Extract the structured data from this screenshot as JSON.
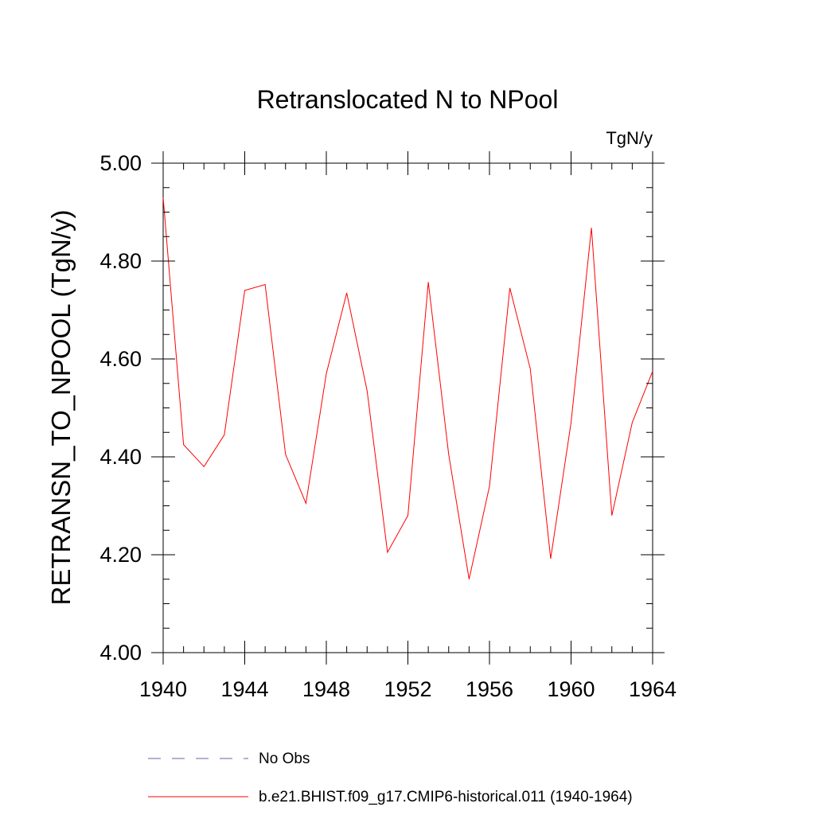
{
  "chart_data": {
    "type": "line",
    "title": "Retranslocated N to NPool",
    "units": "TgN/y",
    "ylabel": "RETRANSN_TO_NPOOL  (TgN/y)",
    "xlabel": "",
    "xlim": [
      1940,
      1964
    ],
    "ylim": [
      4.0,
      5.0
    ],
    "xticks": [
      1940,
      1944,
      1948,
      1952,
      1956,
      1960,
      1964
    ],
    "xtick_labels": [
      "1940",
      "1944",
      "1948",
      "1952",
      "1956",
      "1960",
      "1964"
    ],
    "yticks": [
      4.0,
      4.2,
      4.4,
      4.6,
      4.8,
      5.0
    ],
    "ytick_labels": [
      "4.00",
      "4.20",
      "4.40",
      "4.60",
      "4.80",
      "5.00"
    ],
    "grid": false,
    "legend_position": "bottom",
    "x": [
      1940,
      1941,
      1942,
      1943,
      1944,
      1945,
      1946,
      1947,
      1948,
      1949,
      1950,
      1951,
      1952,
      1953,
      1954,
      1955,
      1956,
      1957,
      1958,
      1959,
      1960,
      1961,
      1962,
      1963,
      1964
    ],
    "series": [
      {
        "name": "b.e21.BHIST.f09_g17.CMIP6-historical.011 (1940-1964)",
        "color": "#ff0000",
        "style": "solid",
        "values": [
          4.93,
          4.425,
          4.38,
          4.445,
          4.74,
          4.752,
          4.405,
          4.305,
          4.57,
          4.735,
          4.535,
          4.205,
          4.28,
          4.757,
          4.405,
          4.15,
          4.34,
          4.745,
          4.58,
          4.192,
          4.47,
          4.868,
          4.28,
          4.47,
          4.575
        ]
      }
    ],
    "legend": [
      {
        "label": "No Obs",
        "color": "#6666aa",
        "style": "dashed"
      },
      {
        "label": "b.e21.BHIST.f09_g17.CMIP6-historical.011 (1940-1964)",
        "color": "#ff0000",
        "style": "solid"
      }
    ]
  }
}
